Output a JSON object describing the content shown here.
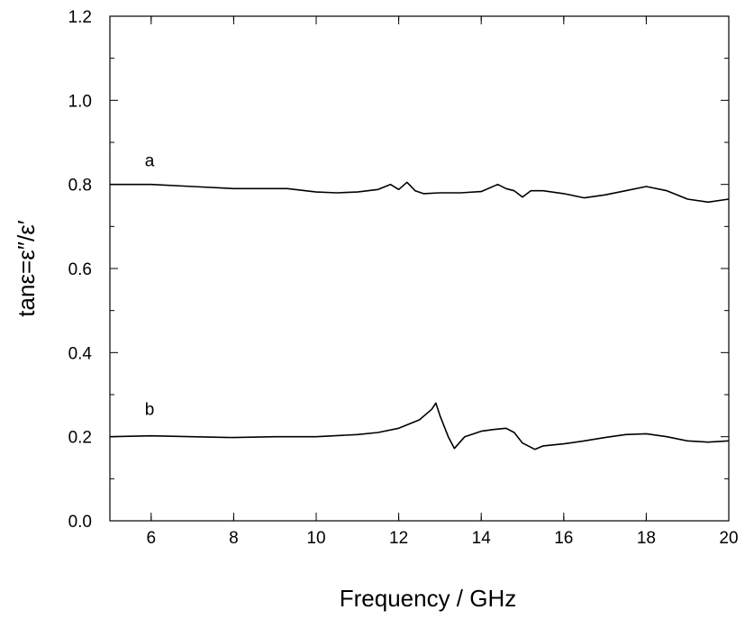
{
  "chart_data": {
    "type": "line",
    "xlabel": "Frequency / GHz",
    "ylabel": "tanε=ε″/ε′",
    "xlim": [
      5,
      20
    ],
    "ylim": [
      0.0,
      1.2
    ],
    "x_ticks": [
      6,
      8,
      10,
      12,
      14,
      16,
      18,
      20
    ],
    "x_tick_labels": [
      "6",
      "8",
      "10",
      "12",
      "14",
      "16",
      "18",
      "20"
    ],
    "y_ticks": [
      0.0,
      0.2,
      0.4,
      0.6,
      0.8,
      1.0,
      1.2
    ],
    "y_tick_labels": [
      "0.0",
      "0.2",
      "0.4",
      "0.6",
      "0.8",
      "1.0",
      "1.2"
    ],
    "grid": false,
    "series": [
      {
        "name": "a",
        "color": "#000000",
        "x": [
          5.0,
          6.0,
          7.0,
          8.0,
          9.0,
          9.3,
          10.0,
          10.5,
          11.0,
          11.5,
          11.8,
          12.0,
          12.2,
          12.4,
          12.6,
          13.0,
          13.5,
          14.0,
          14.4,
          14.6,
          14.8,
          15.0,
          15.2,
          15.5,
          16.0,
          16.5,
          17.0,
          17.5,
          18.0,
          18.5,
          19.0,
          19.5,
          20.0
        ],
        "y": [
          0.8,
          0.8,
          0.795,
          0.79,
          0.79,
          0.79,
          0.782,
          0.78,
          0.782,
          0.788,
          0.8,
          0.788,
          0.805,
          0.785,
          0.778,
          0.78,
          0.78,
          0.783,
          0.8,
          0.79,
          0.785,
          0.77,
          0.785,
          0.785,
          0.778,
          0.768,
          0.775,
          0.785,
          0.795,
          0.785,
          0.765,
          0.758,
          0.765
        ]
      },
      {
        "name": "b",
        "color": "#000000",
        "x": [
          5.0,
          6.0,
          7.0,
          8.0,
          9.0,
          10.0,
          11.0,
          11.5,
          12.0,
          12.5,
          12.8,
          12.9,
          13.0,
          13.2,
          13.35,
          13.6,
          14.0,
          14.3,
          14.6,
          14.8,
          15.0,
          15.3,
          15.5,
          16.0,
          16.5,
          17.0,
          17.5,
          18.0,
          18.5,
          19.0,
          19.5,
          20.0
        ],
        "y": [
          0.2,
          0.202,
          0.2,
          0.198,
          0.2,
          0.2,
          0.205,
          0.21,
          0.22,
          0.24,
          0.265,
          0.28,
          0.25,
          0.2,
          0.172,
          0.2,
          0.213,
          0.217,
          0.22,
          0.21,
          0.185,
          0.17,
          0.178,
          0.183,
          0.19,
          0.198,
          0.205,
          0.207,
          0.2,
          0.19,
          0.187,
          0.19
        ]
      }
    ]
  }
}
